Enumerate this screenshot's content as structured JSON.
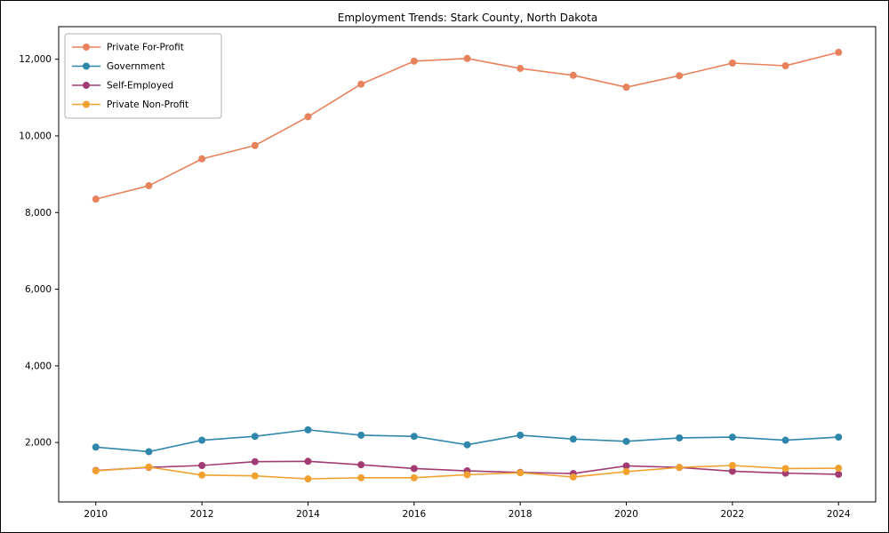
{
  "chart_data": {
    "type": "line",
    "title": "Employment Trends: Stark County, North Dakota",
    "xlabel": "",
    "ylabel": "",
    "grid": false,
    "legend_position": "upper left",
    "x": [
      2010,
      2011,
      2012,
      2013,
      2014,
      2015,
      2016,
      2017,
      2018,
      2019,
      2020,
      2021,
      2022,
      2023,
      2024
    ],
    "xticks": [
      2010,
      2012,
      2014,
      2016,
      2018,
      2020,
      2022,
      2024
    ],
    "yticks": [
      2000,
      4000,
      6000,
      8000,
      10000,
      12000
    ],
    "xlim": [
      2009.3,
      2024.7
    ],
    "ylim": [
      450,
      12850
    ],
    "series": [
      {
        "name": "Private For-Profit",
        "color": "#e8825c",
        "values": [
          8350,
          8700,
          9400,
          9750,
          10500,
          11350,
          11950,
          12020,
          11760,
          11580,
          11270,
          11570,
          11900,
          11830,
          12180
        ]
      },
      {
        "name": "Government",
        "color": "#2e86ab",
        "values": [
          1880,
          1760,
          2060,
          2160,
          2330,
          2190,
          2160,
          1940,
          2190,
          2090,
          2030,
          2120,
          2140,
          2060,
          2140
        ]
      },
      {
        "name": "Self-Employed",
        "color": "#a23b72",
        "values": [
          1270,
          1350,
          1400,
          1500,
          1510,
          1420,
          1320,
          1260,
          1220,
          1190,
          1390,
          1350,
          1250,
          1200,
          1170
        ]
      },
      {
        "name": "Private Non-Profit",
        "color": "#f1a12f",
        "values": [
          1260,
          1360,
          1150,
          1130,
          1050,
          1080,
          1080,
          1160,
          1210,
          1100,
          1240,
          1350,
          1400,
          1320,
          1330
        ]
      }
    ]
  }
}
